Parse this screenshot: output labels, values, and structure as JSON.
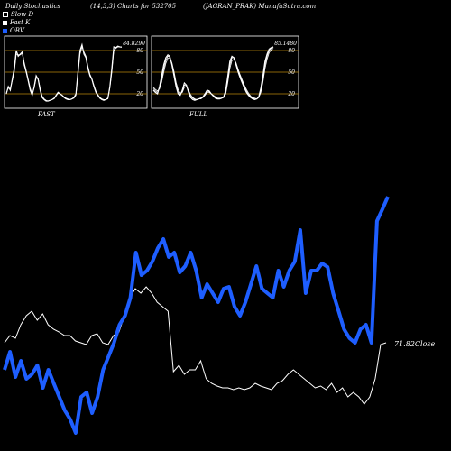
{
  "header": {
    "left": "Daily Stochastics",
    "mid": "(14,3,3) Charts for 532705",
    "right": "(JAGRAN_PRAK) MunafaSutra.com"
  },
  "legend": [
    {
      "label": "Slow D",
      "color": "#ffffff"
    },
    {
      "label": "Fast K",
      "color": "#ffffff"
    },
    {
      "label": "OBV",
      "color": "#1e5eff"
    }
  ],
  "colors": {
    "background": "#000000",
    "obv": "#1e5eff",
    "price": "#ffffff",
    "levels": "#b8860b"
  },
  "chart_data": [
    {
      "type": "line",
      "title": "FAST",
      "last_value_label": "84.8290",
      "ylim": [
        0,
        100
      ],
      "levels": [
        20,
        50,
        80
      ],
      "level_labels": [
        "80",
        "50",
        "20"
      ],
      "series": [
        {
          "values": [
            20,
            30,
            25,
            40,
            55,
            80,
            72,
            75,
            78,
            60,
            50,
            38,
            25,
            18,
            30,
            45,
            40,
            25,
            15,
            12,
            10,
            10,
            11,
            12,
            14,
            18,
            22,
            20,
            18,
            15,
            13,
            12,
            12,
            13,
            15,
            20,
            50,
            80,
            88,
            75,
            70,
            55,
            45,
            40,
            30,
            22,
            18,
            14,
            12,
            11,
            12,
            14,
            30,
            55,
            85,
            84,
            86,
            85,
            84.83
          ]
        },
        {
          "values": [
            22,
            28,
            27,
            38,
            50,
            75,
            74,
            74,
            76,
            63,
            52,
            40,
            28,
            20,
            28,
            42,
            41,
            28,
            17,
            13,
            11,
            10,
            11,
            12,
            13,
            17,
            21,
            20,
            18,
            16,
            14,
            13,
            12,
            13,
            14,
            18,
            45,
            75,
            85,
            78,
            72,
            58,
            47,
            41,
            32,
            24,
            19,
            15,
            13,
            12,
            12,
            13,
            28,
            50,
            80,
            83,
            85,
            85,
            84.5
          ]
        }
      ]
    },
    {
      "type": "line",
      "title": "FULL",
      "last_value_label": "85.1480",
      "ylim": [
        0,
        100
      ],
      "levels": [
        20,
        50,
        80
      ],
      "level_labels": [
        "80",
        "50",
        "20"
      ],
      "series": [
        {
          "values": [
            25,
            22,
            20,
            30,
            45,
            60,
            70,
            74,
            72,
            60,
            45,
            30,
            20,
            18,
            25,
            35,
            32,
            22,
            15,
            12,
            11,
            12,
            13,
            14,
            16,
            20,
            25,
            24,
            20,
            17,
            14,
            13,
            13,
            14,
            16,
            25,
            45,
            65,
            72,
            70,
            60,
            50,
            42,
            35,
            28,
            22,
            18,
            15,
            13,
            12,
            13,
            16,
            28,
            45,
            65,
            75,
            82,
            84,
            85.15
          ]
        },
        {
          "values": [
            27,
            24,
            22,
            28,
            40,
            55,
            66,
            72,
            71,
            62,
            48,
            33,
            23,
            19,
            23,
            32,
            31,
            24,
            17,
            14,
            12,
            12,
            13,
            14,
            15,
            19,
            23,
            23,
            20,
            17,
            15,
            14,
            13,
            14,
            15,
            22,
            40,
            60,
            70,
            70,
            62,
            52,
            44,
            37,
            30,
            24,
            19,
            16,
            14,
            13,
            13,
            15,
            25,
            40,
            60,
            72,
            80,
            83,
            84.8
          ]
        },
        {
          "values": [
            29,
            26,
            24,
            27,
            36,
            50,
            62,
            69,
            70,
            63,
            51,
            36,
            26,
            21,
            22,
            29,
            30,
            25,
            19,
            15,
            13,
            12,
            13,
            13,
            15,
            18,
            22,
            22,
            20,
            18,
            16,
            14,
            14,
            14,
            15,
            20,
            36,
            55,
            66,
            68,
            63,
            54,
            46,
            39,
            32,
            26,
            21,
            17,
            15,
            14,
            13,
            15,
            22,
            36,
            55,
            68,
            77,
            81,
            83
          ]
        }
      ]
    },
    {
      "type": "line",
      "close_label": "71.82Close",
      "series": [
        {
          "name": "OBV",
          "values": [
            410,
            390,
            418,
            400,
            420,
            415,
            405,
            430,
            410,
            425,
            440,
            455,
            465,
            480,
            440,
            435,
            458,
            440,
            410,
            395,
            380,
            360,
            350,
            330,
            280,
            305,
            300,
            290,
            275,
            265,
            285,
            280,
            302,
            295,
            280,
            300,
            330,
            315,
            325,
            335,
            320,
            318,
            340,
            350,
            335,
            315,
            295,
            320,
            325,
            330,
            300,
            318,
            300,
            290,
            255,
            325,
            300,
            300,
            292,
            296,
            325,
            345,
            365,
            375,
            380,
            365,
            360,
            380,
            245,
            232,
            218
          ]
        },
        {
          "name": "Close",
          "values": [
            380,
            372,
            375,
            360,
            350,
            345,
            355,
            348,
            360,
            365,
            368,
            372,
            372,
            378,
            380,
            382,
            372,
            370,
            380,
            382,
            372,
            368,
            350,
            330,
            320,
            325,
            318,
            325,
            335,
            340,
            345,
            412,
            405,
            415,
            410,
            410,
            400,
            420,
            425,
            428,
            430,
            430,
            432,
            430,
            432,
            430,
            425,
            428,
            430,
            432,
            425,
            422,
            415,
            410,
            415,
            420,
            425,
            430,
            428,
            432,
            425,
            435,
            430,
            440,
            435,
            440,
            448,
            440,
            420,
            382,
            380
          ]
        }
      ]
    }
  ]
}
